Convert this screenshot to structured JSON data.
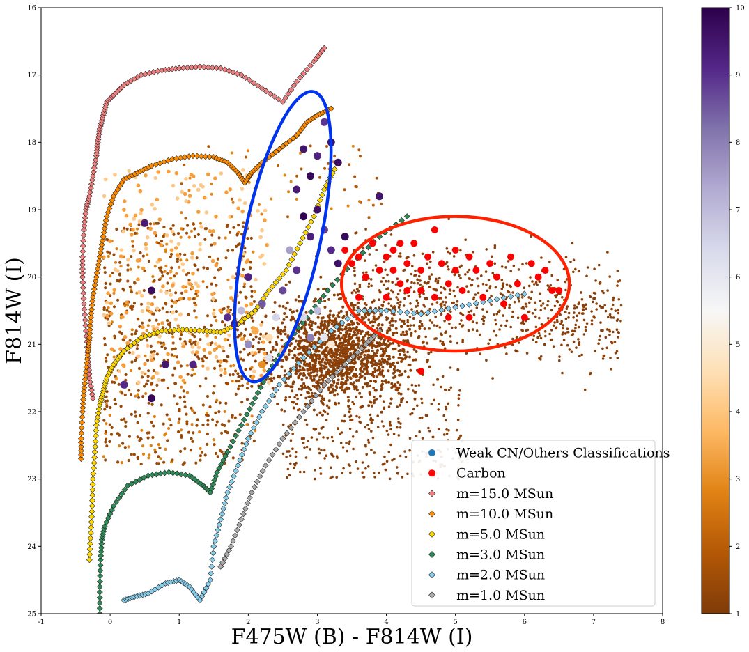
{
  "chart_data": {
    "type": "scatter",
    "title": "",
    "xlabel": "F475W (B) - F814W (I)",
    "ylabel": "F814W (I)",
    "xlim": [
      -1,
      8
    ],
    "ylim": [
      25,
      16
    ],
    "y_inverted": true,
    "grid": false,
    "x_ticks": [
      "-1",
      "0",
      "1",
      "2",
      "3",
      "4",
      "5",
      "6",
      "7",
      "8"
    ],
    "y_ticks": [
      "16",
      "17",
      "18",
      "19",
      "20",
      "21",
      "22",
      "23",
      "24",
      "25"
    ],
    "colorbar": {
      "range": [
        1,
        10
      ],
      "ticks": [
        "1",
        "2",
        "3",
        "4",
        "5",
        "6",
        "7",
        "8",
        "9",
        "10"
      ],
      "colormap": "PuOr",
      "stops": [
        "#7f3b08",
        "#b35806",
        "#e08214",
        "#fdb863",
        "#fee0b6",
        "#f7f7f7",
        "#d8daeb",
        "#b2abd2",
        "#8073ac",
        "#542788",
        "#2d004b"
      ]
    },
    "legend": {
      "placement": "lower-right",
      "entries": [
        {
          "label": "Weak CN/Others Classifications",
          "marker": "circle",
          "color": "#1f77b4"
        },
        {
          "label": "Carbon",
          "marker": "circle",
          "color": "#ff0000"
        },
        {
          "label": "m=15.0 MSun",
          "marker": "diamond",
          "color": "#f08080"
        },
        {
          "label": "m=10.0 MSun",
          "marker": "diamond",
          "color": "#ff8c00"
        },
        {
          "label": "m=5.0 MSun",
          "marker": "diamond",
          "color": "#ffd700"
        },
        {
          "label": "m=3.0 MSun",
          "marker": "diamond",
          "color": "#2e8b57"
        },
        {
          "label": "m=2.0 MSun",
          "marker": "diamond",
          "color": "#87ceeb"
        },
        {
          "label": "m=1.0 MSun",
          "marker": "diamond",
          "color": "#a9a9a9"
        }
      ]
    },
    "ellipses": [
      {
        "color": "#0033ee",
        "center": [
          2.5,
          19.4
        ],
        "semi_axes": [
          0.55,
          2.2
        ],
        "angle_deg": 12
      },
      {
        "color": "#ff2200",
        "center": [
          5.0,
          20.1
        ],
        "semi_axes": [
          1.65,
          1.0
        ],
        "angle_deg": 0
      }
    ],
    "isochrones": [
      {
        "name": "m=15.0 MSun",
        "color": "#f08080",
        "x": [
          -0.25,
          -0.3,
          -0.32,
          -0.35,
          -0.38,
          -0.4,
          -0.4,
          -0.38,
          -0.35,
          -0.3,
          -0.25,
          -0.2,
          -0.18,
          -0.15,
          -0.1,
          -0.05,
          0.05,
          0.2,
          0.45,
          0.75,
          1.0,
          1.3,
          1.6,
          1.9,
          2.2,
          2.5,
          2.7,
          2.95,
          3.1
        ],
        "y": [
          21.8,
          21.5,
          21.2,
          20.8,
          20.4,
          20.0,
          19.7,
          19.3,
          19.0,
          18.8,
          18.5,
          18.2,
          18.0,
          17.8,
          17.6,
          17.4,
          17.3,
          17.15,
          17.0,
          16.93,
          16.9,
          16.88,
          16.9,
          17.0,
          17.2,
          17.4,
          17.1,
          16.8,
          16.6
        ]
      },
      {
        "name": "m=10.0 MSun",
        "color": "#ff8c00",
        "x": [
          -0.42,
          -0.42,
          -0.4,
          -0.38,
          -0.35,
          -0.32,
          -0.3,
          -0.28,
          -0.25,
          -0.2,
          -0.15,
          -0.1,
          -0.05,
          0.05,
          0.2,
          0.4,
          0.6,
          0.9,
          1.2,
          1.5,
          1.7,
          1.85,
          1.95,
          2.05,
          2.2,
          2.45,
          2.7,
          2.85,
          3.0,
          3.2
        ],
        "y": [
          22.7,
          22.4,
          22.0,
          21.7,
          21.4,
          21.1,
          20.9,
          20.6,
          20.3,
          20.0,
          19.7,
          19.4,
          19.1,
          18.8,
          18.55,
          18.45,
          18.35,
          18.25,
          18.2,
          18.22,
          18.3,
          18.45,
          18.6,
          18.45,
          18.3,
          18.1,
          17.9,
          17.7,
          17.6,
          17.5
        ]
      },
      {
        "name": "m=5.0 MSun",
        "color": "#ffd700",
        "x": [
          -0.3,
          -0.28,
          -0.26,
          -0.25,
          -0.22,
          -0.2,
          -0.15,
          -0.1,
          -0.05,
          0.05,
          0.2,
          0.45,
          0.75,
          1.05,
          1.35,
          1.6,
          1.85,
          2.1,
          2.3,
          2.55,
          2.75,
          2.95,
          3.1,
          3.25
        ],
        "y": [
          24.2,
          23.8,
          23.4,
          23.0,
          22.6,
          22.2,
          21.9,
          21.7,
          21.5,
          21.3,
          21.1,
          20.9,
          20.8,
          20.78,
          20.8,
          20.82,
          20.7,
          20.5,
          20.2,
          19.9,
          19.5,
          19.1,
          18.7,
          18.4
        ]
      },
      {
        "name": "m=3.0 MSun",
        "color": "#2e8b57",
        "x": [
          -0.15,
          -0.15,
          -0.14,
          -0.12,
          -0.08,
          0.05,
          0.25,
          0.55,
          0.85,
          1.15,
          1.35,
          1.45,
          1.55,
          1.7,
          1.9,
          2.1,
          2.3,
          2.55,
          2.85,
          3.15,
          3.5,
          3.9,
          4.3
        ],
        "y": [
          25.0,
          24.6,
          24.2,
          23.9,
          23.7,
          23.4,
          23.1,
          22.95,
          22.9,
          22.95,
          23.1,
          23.2,
          22.9,
          22.6,
          22.2,
          21.8,
          21.4,
          21.0,
          20.6,
          20.2,
          19.8,
          19.4,
          19.1
        ]
      },
      {
        "name": "m=2.0 MSun",
        "color": "#87ceeb",
        "x": [
          0.2,
          0.35,
          0.55,
          0.8,
          1.0,
          1.15,
          1.3,
          1.45,
          1.5,
          1.6,
          1.7,
          1.85,
          2.0,
          2.2,
          2.45,
          2.8,
          3.2,
          3.6,
          4.0,
          4.5,
          5.0,
          5.5,
          6.0
        ],
        "y": [
          24.8,
          24.75,
          24.7,
          24.55,
          24.5,
          24.6,
          24.8,
          24.5,
          24.0,
          23.6,
          23.2,
          22.8,
          22.4,
          22.0,
          21.6,
          21.2,
          20.8,
          20.5,
          20.5,
          20.55,
          20.45,
          20.35,
          20.25
        ]
      },
      {
        "name": "m=1.0 MSun",
        "color": "#a9a9a9",
        "x": [
          1.6,
          1.75,
          1.9,
          2.05,
          2.25,
          2.5,
          2.8,
          3.1,
          3.4,
          3.7,
          3.9
        ],
        "y": [
          24.3,
          24.0,
          23.6,
          23.2,
          22.8,
          22.4,
          22.0,
          21.6,
          21.3,
          21.0,
          20.8
        ]
      }
    ],
    "carbon_stars": {
      "color": "#ff0000",
      "points": [
        [
          3.4,
          19.6
        ],
        [
          3.5,
          19.8
        ],
        [
          3.6,
          19.7
        ],
        [
          3.7,
          20.0
        ],
        [
          3.8,
          19.5
        ],
        [
          3.9,
          19.9
        ],
        [
          4.0,
          19.7
        ],
        [
          4.1,
          19.6
        ],
        [
          4.1,
          19.9
        ],
        [
          4.2,
          19.5
        ],
        [
          4.2,
          20.1
        ],
        [
          4.3,
          19.8
        ],
        [
          4.4,
          19.5
        ],
        [
          4.5,
          19.9
        ],
        [
          4.5,
          20.2
        ],
        [
          4.6,
          19.7
        ],
        [
          4.7,
          19.3
        ],
        [
          4.7,
          20.3
        ],
        [
          4.8,
          19.8
        ],
        [
          4.9,
          20.1
        ],
        [
          5.0,
          19.6
        ],
        [
          5.0,
          19.9
        ],
        [
          5.1,
          20.2
        ],
        [
          5.2,
          19.7
        ],
        [
          5.3,
          19.9
        ],
        [
          5.4,
          20.3
        ],
        [
          5.5,
          19.8
        ],
        [
          5.6,
          20.0
        ],
        [
          5.7,
          20.4
        ],
        [
          5.8,
          19.7
        ],
        [
          5.9,
          20.1
        ],
        [
          6.0,
          20.6
        ],
        [
          6.1,
          19.8
        ],
        [
          6.2,
          20.0
        ],
        [
          6.3,
          19.9
        ],
        [
          6.4,
          20.2
        ],
        [
          6.5,
          20.2
        ],
        [
          4.0,
          20.3
        ],
        [
          4.3,
          20.2
        ],
        [
          4.5,
          21.4
        ],
        [
          5.2,
          20.6
        ],
        [
          3.6,
          20.3
        ],
        [
          4.9,
          20.6
        ]
      ]
    },
    "mass_colored_giants": {
      "points": [
        [
          2.8,
          18.1
        ],
        [
          2.9,
          18.5
        ],
        [
          3.0,
          18.2
        ],
        [
          3.1,
          17.7
        ],
        [
          3.2,
          18.0
        ],
        [
          3.3,
          18.3
        ],
        [
          2.7,
          18.7
        ],
        [
          2.8,
          19.1
        ],
        [
          2.9,
          19.4
        ],
        [
          3.0,
          19.0
        ],
        [
          3.1,
          19.3
        ],
        [
          3.2,
          19.6
        ],
        [
          2.6,
          19.6
        ],
        [
          2.7,
          19.9
        ],
        [
          2.5,
          20.2
        ],
        [
          2.4,
          20.6
        ],
        [
          2.3,
          20.9
        ],
        [
          2.2,
          20.4
        ],
        [
          2.0,
          20.0
        ],
        [
          1.9,
          20.5
        ],
        [
          2.1,
          20.8
        ],
        [
          3.3,
          19.8
        ],
        [
          3.4,
          19.4
        ],
        [
          3.9,
          18.8
        ],
        [
          2.6,
          20.8
        ],
        [
          2.8,
          20.6
        ],
        [
          3.0,
          20.5
        ],
        [
          2.5,
          21.1
        ],
        [
          2.2,
          21.3
        ],
        [
          3.1,
          20.9
        ],
        [
          3.2,
          21.0
        ],
        [
          2.9,
          20.9
        ],
        [
          1.8,
          20.7
        ],
        [
          1.7,
          20.6
        ],
        [
          2.0,
          21.0
        ],
        [
          2.3,
          21.2
        ],
        [
          0.5,
          19.2
        ],
        [
          0.6,
          20.2
        ],
        [
          0.8,
          21.3
        ],
        [
          0.2,
          21.6
        ],
        [
          1.2,
          21.3
        ],
        [
          0.6,
          21.8
        ]
      ],
      "masses": [
        9.5,
        9.8,
        9.2,
        8.9,
        9.6,
        9.7,
        9.4,
        9.9,
        9.3,
        9.6,
        8.8,
        9.1,
        7.5,
        9.0,
        8.7,
        6.5,
        4.5,
        8.5,
        9.2,
        7.0,
        3.5,
        9.6,
        9.8,
        9.5,
        5.5,
        6.5,
        7.0,
        4.0,
        3.0,
        6.0,
        5.0,
        8.0,
        9.3,
        9.0,
        7.8,
        6.2,
        9.4,
        9.7,
        9.5,
        9.1,
        9.2,
        9.8
      ]
    },
    "low_mass_field": {
      "x_range": [
        -0.2,
        8.0
      ],
      "y_range": [
        18.0,
        23.0
      ]
    }
  }
}
